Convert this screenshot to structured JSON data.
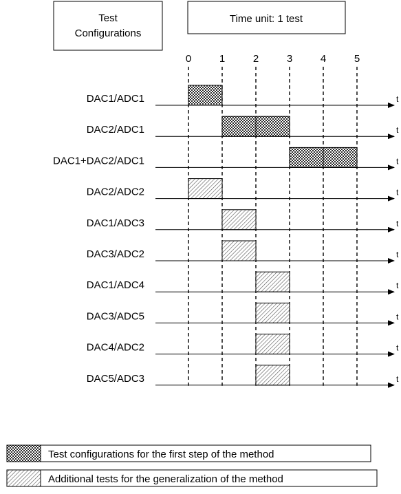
{
  "header": {
    "configurations_label_line1": "Test",
    "configurations_label_line2": "Configurations",
    "time_unit_label": "Time unit: 1 test"
  },
  "timeline": {
    "ticks": [
      "0",
      "1",
      "2",
      "3",
      "4",
      "5"
    ],
    "axis_label": "t"
  },
  "rows": [
    {
      "label": "DAC1/ADC1",
      "tests": [
        {
          "start": 0,
          "end": 1,
          "kind": "first_step"
        }
      ]
    },
    {
      "label": "DAC2/ADC1",
      "tests": [
        {
          "start": 1,
          "end": 2,
          "kind": "first_step"
        },
        {
          "start": 2,
          "end": 3,
          "kind": "first_step"
        }
      ]
    },
    {
      "label": "DAC1+DAC2/ADC1",
      "tests": [
        {
          "start": 3,
          "end": 4,
          "kind": "first_step"
        },
        {
          "start": 4,
          "end": 5,
          "kind": "first_step"
        }
      ]
    },
    {
      "label": "DAC2/ADC2",
      "tests": [
        {
          "start": 0,
          "end": 1,
          "kind": "additional"
        }
      ]
    },
    {
      "label": "DAC1/ADC3",
      "tests": [
        {
          "start": 1,
          "end": 2,
          "kind": "additional"
        }
      ]
    },
    {
      "label": "DAC3/ADC2",
      "tests": [
        {
          "start": 1,
          "end": 2,
          "kind": "additional"
        }
      ]
    },
    {
      "label": "DAC1/ADC4",
      "tests": [
        {
          "start": 2,
          "end": 3,
          "kind": "additional"
        }
      ]
    },
    {
      "label": "DAC3/ADC5",
      "tests": [
        {
          "start": 2,
          "end": 3,
          "kind": "additional"
        }
      ]
    },
    {
      "label": "DAC4/ADC2",
      "tests": [
        {
          "start": 2,
          "end": 3,
          "kind": "additional"
        }
      ]
    },
    {
      "label": "DAC5/ADC3",
      "tests": [
        {
          "start": 2,
          "end": 3,
          "kind": "additional"
        }
      ]
    }
  ],
  "legend": {
    "first_step": "Test configurations for the first step of the method",
    "additional": "Additional tests for the generalization of the method"
  }
}
